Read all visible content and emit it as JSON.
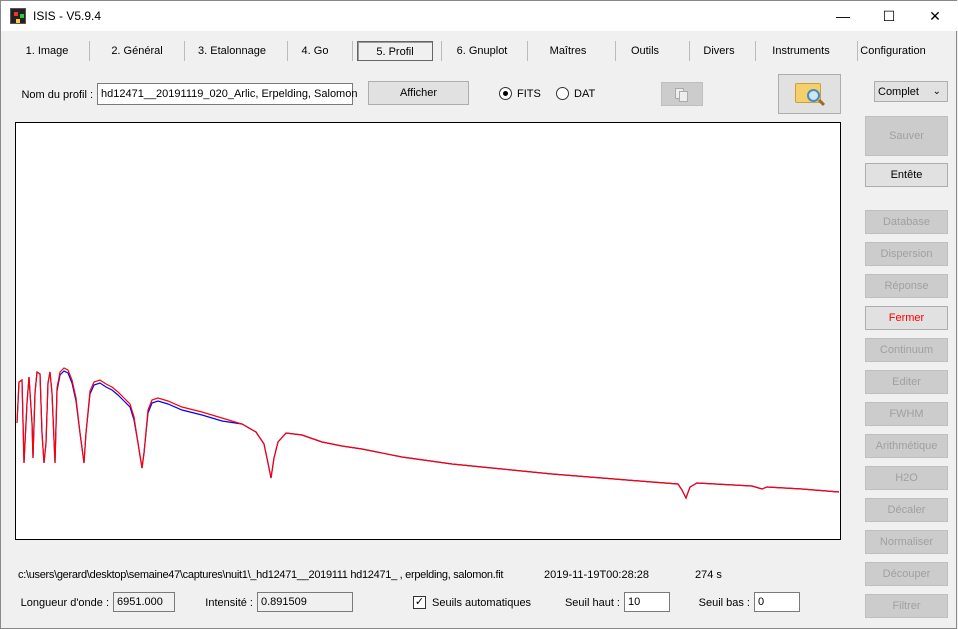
{
  "window": {
    "title": "ISIS - V5.9.4"
  },
  "tabs": [
    {
      "label": "1. Image"
    },
    {
      "label": "2. Général"
    },
    {
      "label": "3. Etalonnage"
    },
    {
      "label": "4. Go"
    },
    {
      "label": "5. Profil",
      "active": true
    },
    {
      "label": "6. Gnuplot"
    },
    {
      "label": "Maîtres"
    },
    {
      "label": "Outils"
    },
    {
      "label": "Divers"
    },
    {
      "label": "Instruments"
    },
    {
      "label": "Configuration"
    }
  ],
  "profile": {
    "label": "Nom du profil :",
    "value": "hd12471__20191119_020_Arlic, Erpelding, Salomon",
    "show_button": "Afficher",
    "format_options": [
      {
        "label": "FITS",
        "selected": true
      },
      {
        "label": "DAT",
        "selected": false
      }
    ],
    "mode_select": "Complet"
  },
  "side_buttons": [
    {
      "label": "Sauver",
      "enabled": false
    },
    {
      "label": "Entête",
      "enabled": true
    },
    {
      "label": "Database",
      "enabled": false
    },
    {
      "label": "Dispersion",
      "enabled": false
    },
    {
      "label": "Réponse",
      "enabled": false
    },
    {
      "label": "Fermer",
      "enabled": true,
      "color": "#ff0000"
    },
    {
      "label": "Continuum",
      "enabled": false
    },
    {
      "label": "Editer",
      "enabled": false
    },
    {
      "label": "FWHM",
      "enabled": false
    },
    {
      "label": "Arithmétique",
      "enabled": false
    },
    {
      "label": "H2O",
      "enabled": false
    },
    {
      "label": "Décaler",
      "enabled": false
    },
    {
      "label": "Normaliser",
      "enabled": false
    },
    {
      "label": "Découper",
      "enabled": false
    },
    {
      "label": "Filtrer",
      "enabled": false
    }
  ],
  "plot": {
    "series_colors": [
      "#0000ff",
      "#ff0000"
    ]
  },
  "status": {
    "path": "c:\\users\\gerard\\desktop\\semaine47\\captures\\nuit1\\_hd12471__2019111 hd12471_ , erpelding, salomon.fit",
    "date": "2019-11-19T00:28:28",
    "exposure": "274 s"
  },
  "readout": {
    "wavelength_label": "Longueur d'onde :",
    "wavelength": "6951.000",
    "intensity_label": "Intensité :",
    "intensity": "0.891509",
    "auto_label": "Seuils automatiques",
    "auto_checked": true,
    "high_label": "Seuil haut :",
    "high": "10",
    "low_label": "Seuil bas :",
    "low": "0"
  }
}
